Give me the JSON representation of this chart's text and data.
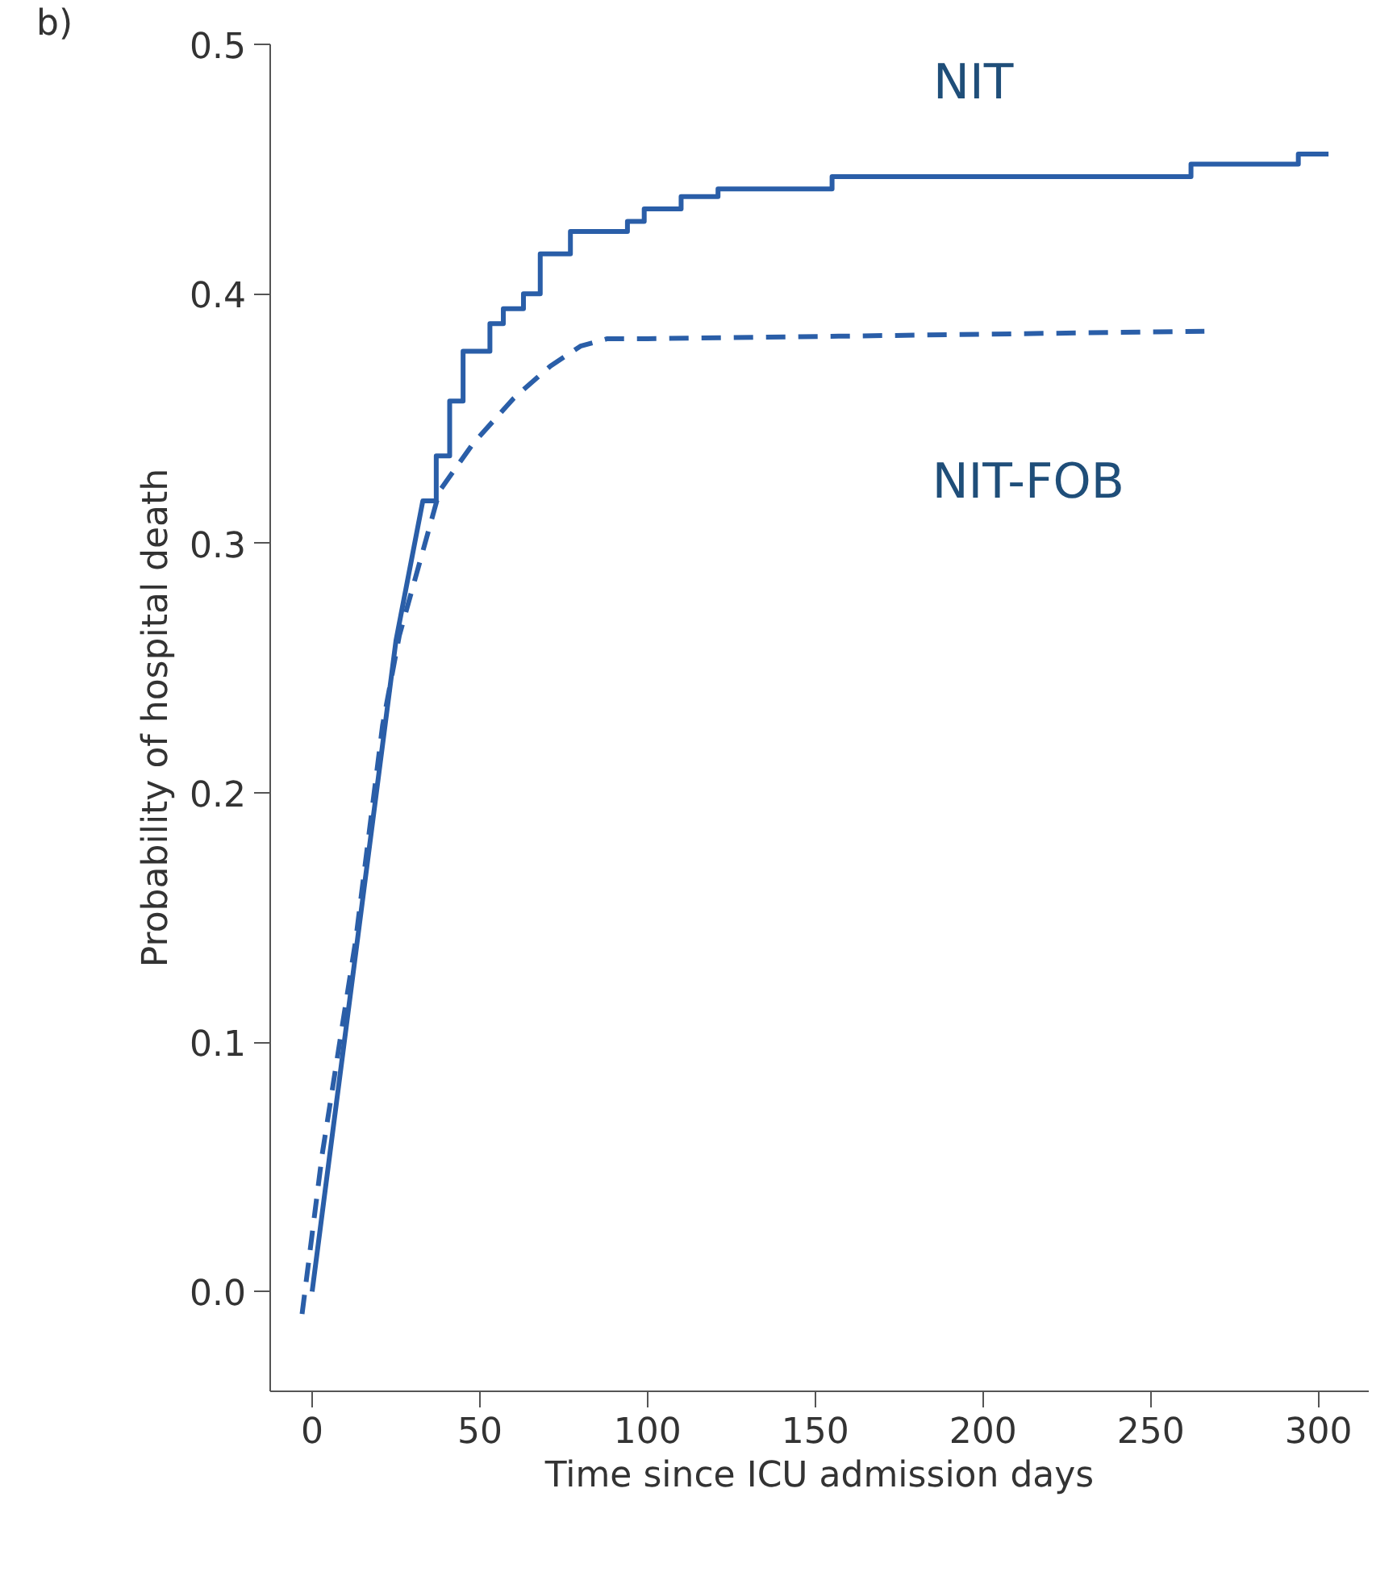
{
  "chart_data": {
    "type": "line",
    "xlabel": "Time since ICU admission days",
    "ylabel": "Probability of hospital death",
    "annotations": [
      "b)"
    ],
    "xlim": [
      -12.5,
      315
    ],
    "ylim": [
      -0.04,
      0.5
    ],
    "xticks": [
      0,
      50,
      100,
      150,
      200,
      250,
      300
    ],
    "yticks": [
      {
        "value": 0,
        "label": "0.0"
      },
      0.1,
      0.2,
      0.3,
      0.4,
      0.5
    ],
    "grid": false,
    "series": [
      {
        "name": "NIT",
        "color": "#2a5ea8",
        "line_style": "solid",
        "x": [
          0,
          25,
          33,
          37,
          37,
          41,
          41,
          45,
          45,
          53,
          53,
          57,
          57,
          63,
          63,
          68,
          68,
          77,
          77,
          94,
          94,
          99,
          99,
          110,
          110,
          121,
          121,
          155,
          155,
          262,
          262,
          294,
          294,
          303
        ],
        "values": [
          0,
          0.261,
          0.317,
          0.317,
          0.335,
          0.335,
          0.357,
          0.357,
          0.377,
          0.377,
          0.388,
          0.388,
          0.394,
          0.394,
          0.4,
          0.4,
          0.416,
          0.416,
          0.425,
          0.425,
          0.429,
          0.429,
          0.434,
          0.434,
          0.439,
          0.439,
          0.442,
          0.442,
          0.447,
          0.447,
          0.452,
          0.452,
          0.456,
          0.456
        ]
      },
      {
        "name": "NIT-FOB",
        "color": "#2a5ea8",
        "line_style": "dashed",
        "x": [
          -3,
          3,
          13,
          21,
          26,
          38,
          48,
          60,
          71,
          80,
          88,
          100,
          157,
          266
        ],
        "values": [
          -0.009,
          0.055,
          0.141,
          0.227,
          0.263,
          0.321,
          0.34,
          0.358,
          0.371,
          0.379,
          0.382,
          0.382,
          0.383,
          0.385
        ]
      }
    ]
  }
}
